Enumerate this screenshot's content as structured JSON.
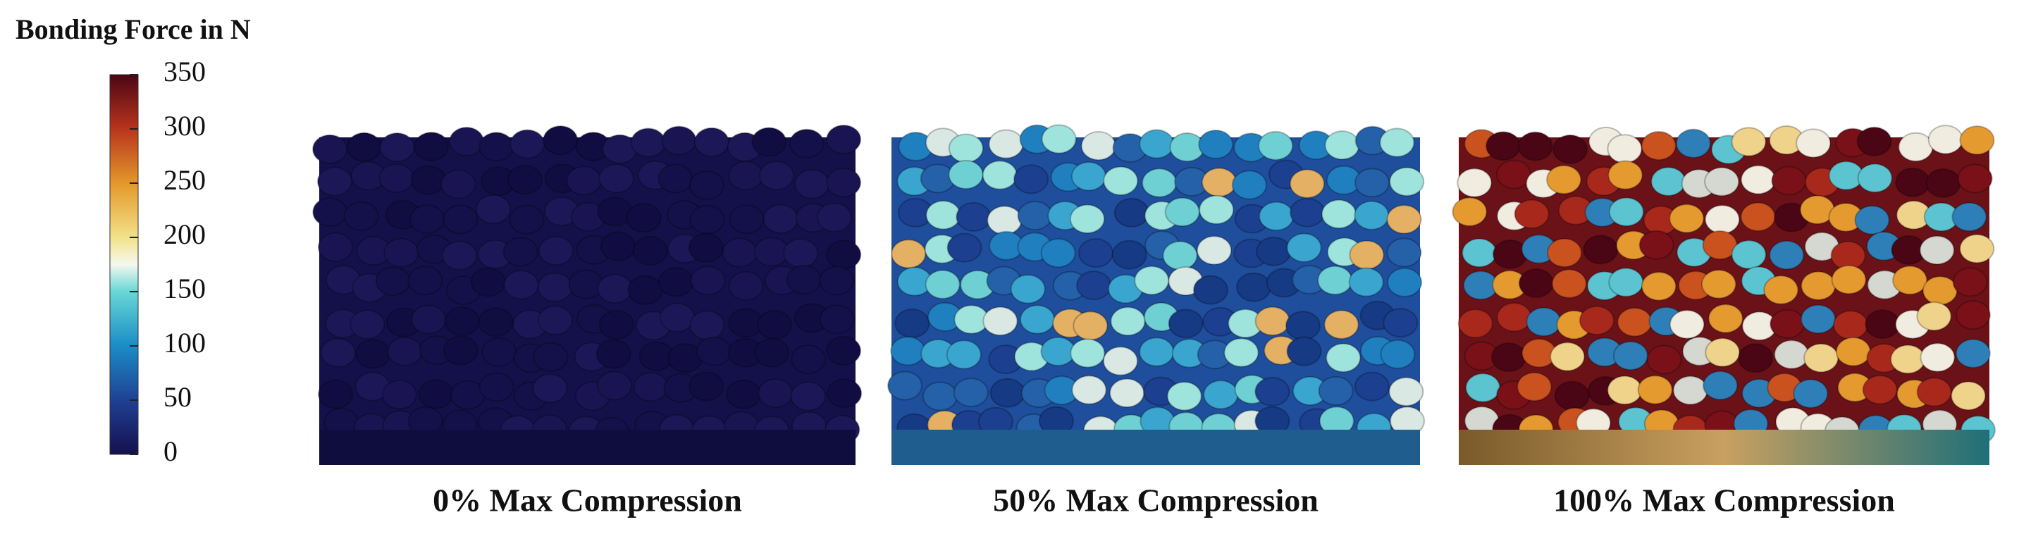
{
  "colorbar": {
    "title": "Bonding Force in N",
    "lim": [
      0,
      350
    ],
    "ticks": [
      0,
      50,
      100,
      150,
      200,
      250,
      300,
      350
    ]
  },
  "panels": [
    {
      "caption": "0% Max Compression"
    },
    {
      "caption": "50% Max Compression"
    },
    {
      "caption": "100% Max Compression"
    }
  ]
}
